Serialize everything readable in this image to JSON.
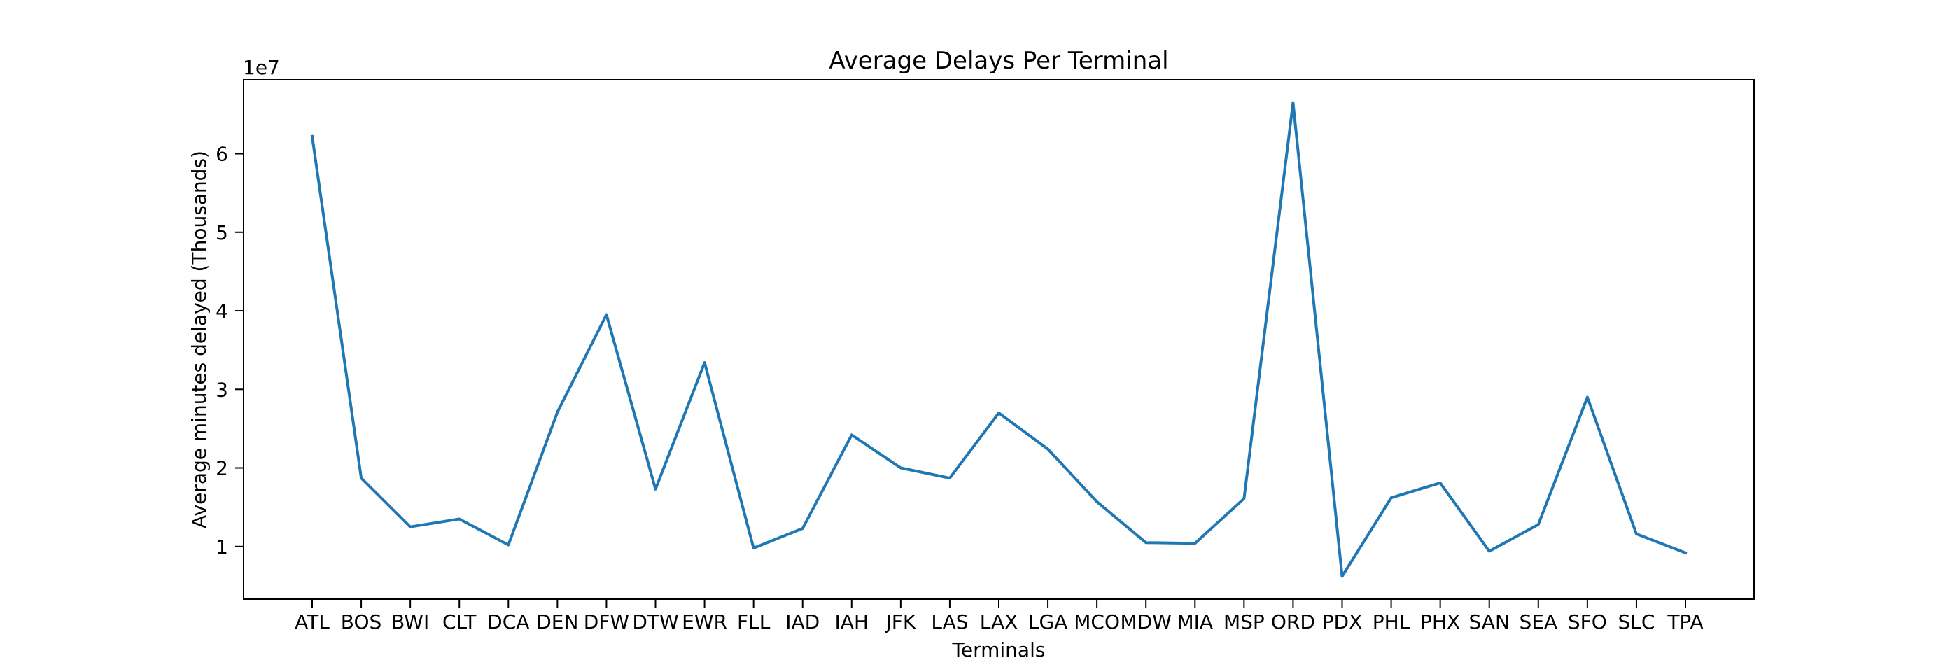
{
  "chart_data": {
    "type": "line",
    "title": "Average Delays Per Terminal",
    "xlabel": "Terminals",
    "ylabel": "Average minutes delayed (Thousands)",
    "y_offset_text": "1e7",
    "categories": [
      "ATL",
      "BOS",
      "BWI",
      "CLT",
      "DCA",
      "DEN",
      "DFW",
      "DTW",
      "EWR",
      "FLL",
      "IAD",
      "IAH",
      "JFK",
      "LAS",
      "LAX",
      "LGA",
      "MCO",
      "MDW",
      "MIA",
      "MSP",
      "ORD",
      "PDX",
      "PHL",
      "PHX",
      "SAN",
      "SEA",
      "SFO",
      "SLC",
      "TPA"
    ],
    "series": [
      {
        "values": [
          6.22,
          1.87,
          1.25,
          1.35,
          1.02,
          2.71,
          3.95,
          1.73,
          3.34,
          0.98,
          1.23,
          2.42,
          2.0,
          1.87,
          2.7,
          2.24,
          1.57,
          1.05,
          1.04,
          1.61,
          6.65,
          0.62,
          1.62,
          1.81,
          0.94,
          1.28,
          2.9,
          1.16,
          0.92
        ],
        "color": "#1f77b4"
      }
    ],
    "yticks": [
      1,
      2,
      3,
      4,
      5,
      6
    ],
    "ylim": [
      0.33,
      6.94
    ],
    "grid": false,
    "legend": "none"
  }
}
